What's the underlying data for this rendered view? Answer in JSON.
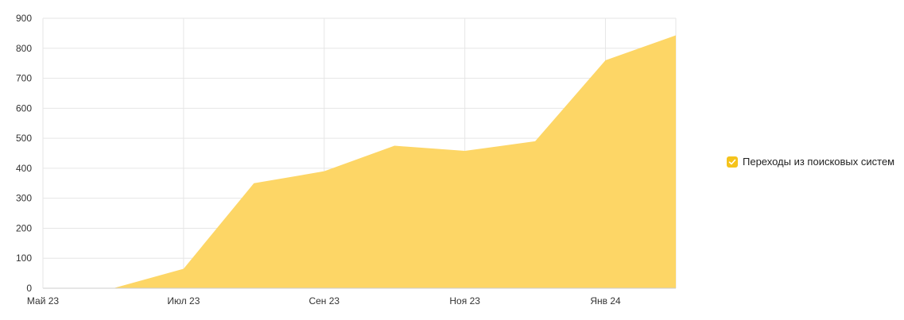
{
  "chart_data": {
    "type": "area",
    "x": [
      "2023-05",
      "2023-06",
      "2023-07",
      "2023-08",
      "2023-09",
      "2023-10",
      "2023-11",
      "2023-12",
      "2024-01",
      "2024-02"
    ],
    "x_tick_labels": [
      {
        "x": "2023-05",
        "label": "Май 23"
      },
      {
        "x": "2023-07",
        "label": "Июл 23"
      },
      {
        "x": "2023-09",
        "label": "Сен 23"
      },
      {
        "x": "2023-11",
        "label": "Ноя 23"
      },
      {
        "x": "2024-01",
        "label": "Янв 24"
      }
    ],
    "series": [
      {
        "name": "Переходы из поисковых систем",
        "values": [
          0,
          0,
          65,
          350,
          390,
          475,
          458,
          490,
          760,
          843
        ]
      }
    ],
    "ylim": [
      0,
      900
    ],
    "y_ticks": [
      0,
      100,
      200,
      300,
      400,
      500,
      600,
      700,
      800,
      900
    ],
    "grid": true,
    "legend_position": "right",
    "colors": {
      "area": "#fdd666",
      "grid": "#e6e6e6",
      "axis": "#cccccc",
      "checkbox": "#f5c31c"
    }
  },
  "legend": {
    "label": "Переходы из поисковых систем",
    "checked": true,
    "icon": "check-icon"
  }
}
